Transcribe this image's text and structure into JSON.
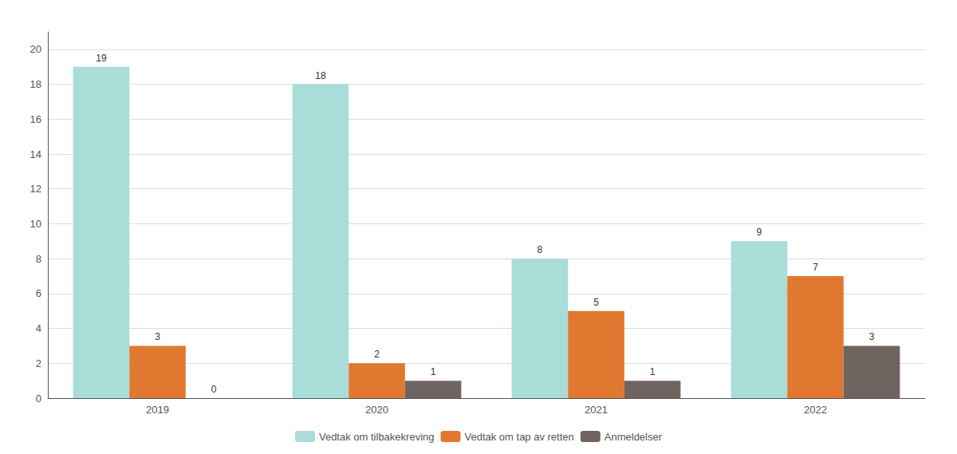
{
  "chart_data": {
    "type": "bar",
    "categories": [
      "2019",
      "2020",
      "2021",
      "2022"
    ],
    "series": [
      {
        "name": "Vedtak om tilbakekreving",
        "color": "#A8DDD8",
        "values": [
          19,
          18,
          8,
          9
        ]
      },
      {
        "name": "Vedtak om tap av retten",
        "color": "#E07830",
        "values": [
          3,
          2,
          5,
          7
        ]
      },
      {
        "name": "Anmeldelser",
        "color": "#706460",
        "values": [
          0,
          1,
          1,
          3
        ]
      }
    ],
    "ylim": [
      0,
      21
    ],
    "yticks": [
      0,
      2,
      4,
      6,
      8,
      10,
      12,
      14,
      16,
      18,
      20
    ],
    "grid": true,
    "legend": "bottom",
    "data_labels": true
  }
}
